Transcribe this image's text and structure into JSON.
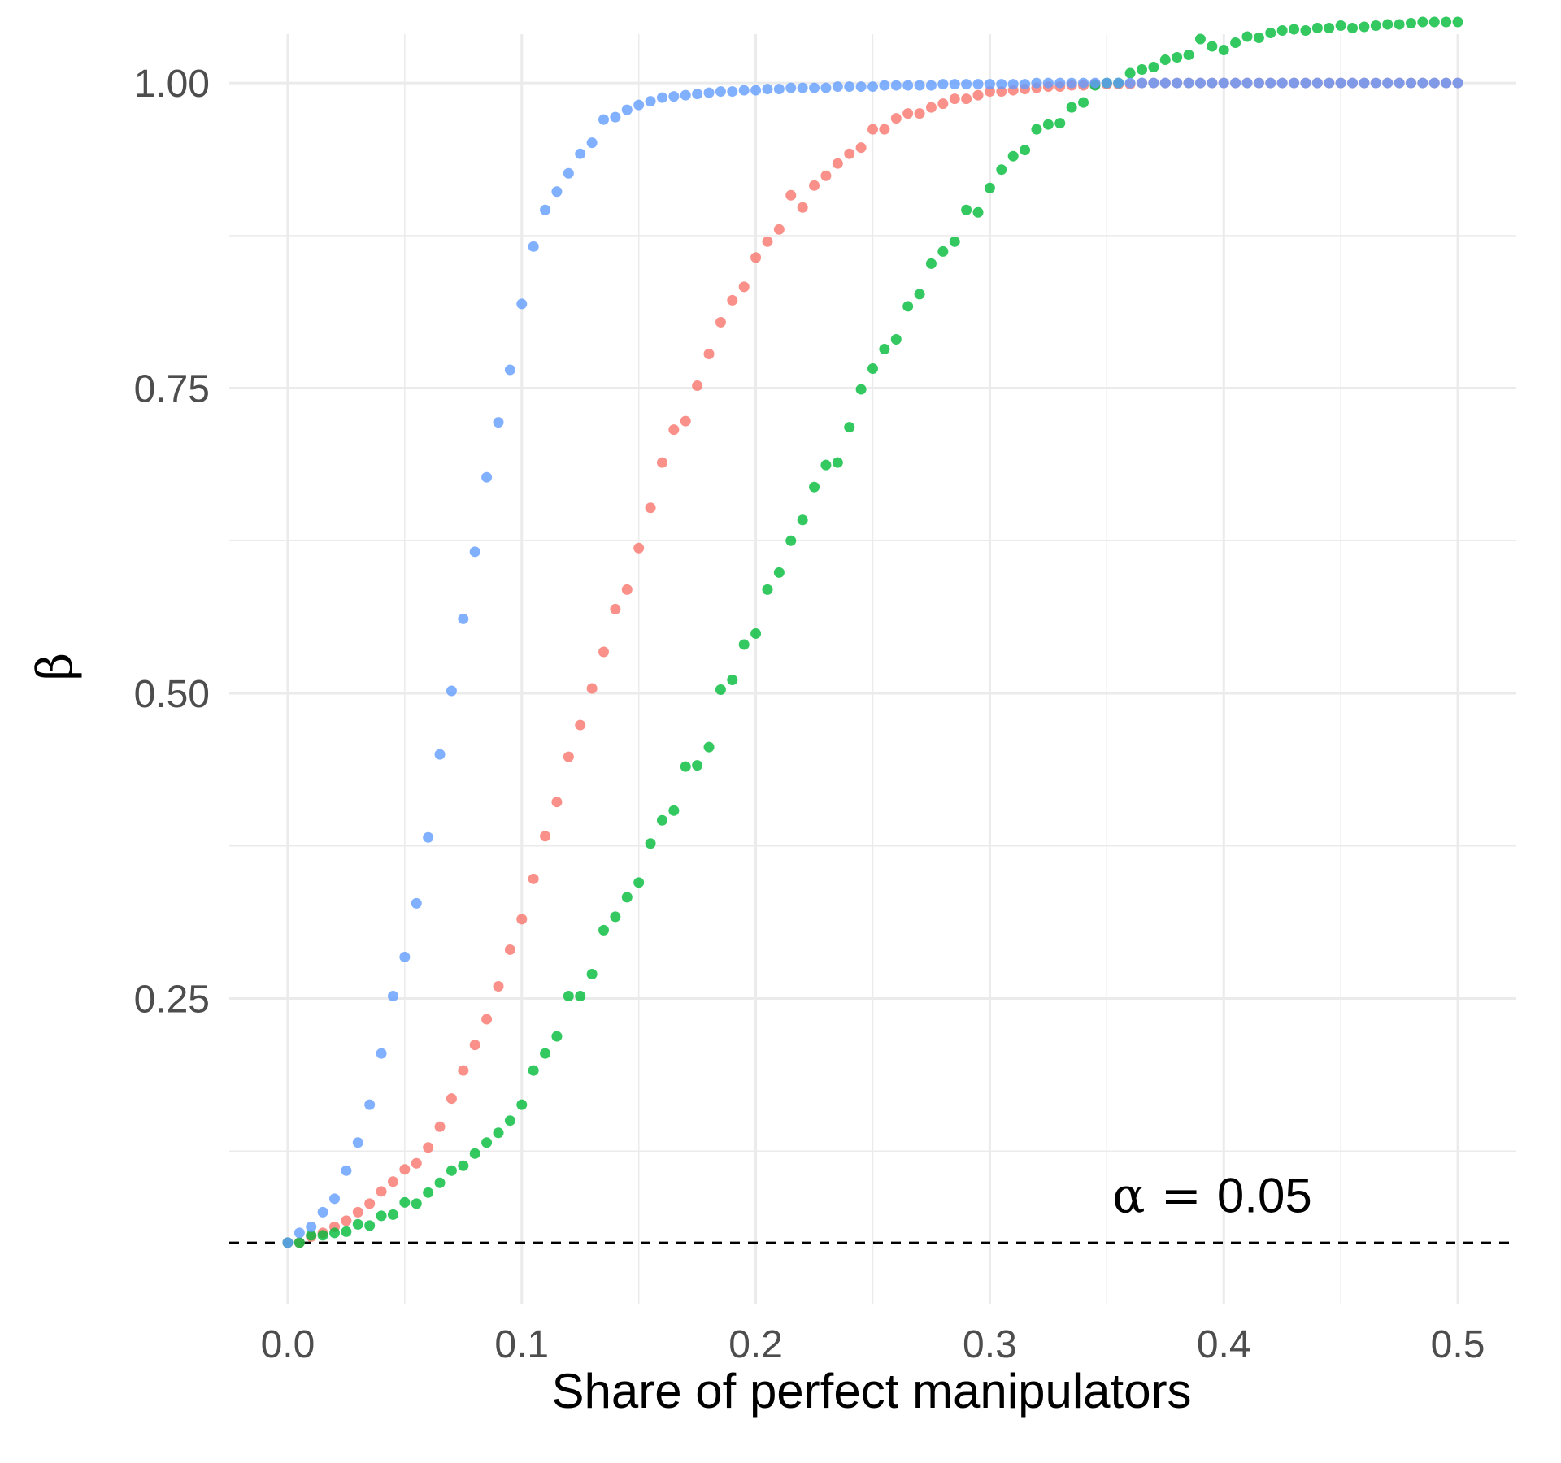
{
  "chart_data": {
    "type": "scatter",
    "title": "",
    "xlabel": "Share of perfect manipulators",
    "ylabel": "β",
    "xlim": [
      -0.025,
      0.525
    ],
    "ylim": [
      0.0,
      1.04
    ],
    "x_ticks": [
      0.0,
      0.1,
      0.2,
      0.3,
      0.4,
      0.5
    ],
    "x_tick_labels": [
      "0.0",
      "0.1",
      "0.2",
      "0.3",
      "0.4",
      "0.5"
    ],
    "y_ticks": [
      0.25,
      0.5,
      0.75,
      1.0
    ],
    "y_tick_labels": [
      "0.25",
      "0.50",
      "0.75",
      "1.00"
    ],
    "y_minor_ticks": [
      0.125,
      0.375,
      0.625,
      0.875
    ],
    "grid": true,
    "legend": "none",
    "reference_line": {
      "y": 0.05,
      "style": "dashed",
      "color": "#000000"
    },
    "annotation": {
      "greek": "α",
      "equals": " = ",
      "value": "0.05",
      "x": 0.395,
      "y": 0.075
    },
    "x": [
      0.0,
      0.005,
      0.01,
      0.015,
      0.02,
      0.025,
      0.03,
      0.035,
      0.04,
      0.045,
      0.05,
      0.055,
      0.06,
      0.065,
      0.07,
      0.075,
      0.08,
      0.085,
      0.09,
      0.095,
      0.1,
      0.105,
      0.11,
      0.115,
      0.12,
      0.125,
      0.13,
      0.135,
      0.14,
      0.145,
      0.15,
      0.155,
      0.16,
      0.165,
      0.17,
      0.175,
      0.18,
      0.185,
      0.19,
      0.195,
      0.2,
      0.205,
      0.21,
      0.215,
      0.22,
      0.225,
      0.23,
      0.235,
      0.24,
      0.245,
      0.25,
      0.255,
      0.26,
      0.265,
      0.27,
      0.275,
      0.28,
      0.285,
      0.29,
      0.295,
      0.3,
      0.305,
      0.31,
      0.315,
      0.32,
      0.325,
      0.33,
      0.335,
      0.34,
      0.345,
      0.35,
      0.355,
      0.36,
      0.365,
      0.37,
      0.375,
      0.38,
      0.385,
      0.39,
      0.395,
      0.4,
      0.405,
      0.41,
      0.415,
      0.42,
      0.425,
      0.43,
      0.435,
      0.44,
      0.445,
      0.45,
      0.455,
      0.46,
      0.465,
      0.47,
      0.475,
      0.48,
      0.485,
      0.49,
      0.495,
      0.5
    ],
    "series": [
      {
        "color": "#F8766D",
        "values": [
          0.05,
          0.05,
          0.055,
          0.058,
          0.063,
          0.068,
          0.075,
          0.082,
          0.092,
          0.1,
          0.11,
          0.115,
          0.128,
          0.145,
          0.168,
          0.191,
          0.212,
          0.233,
          0.26,
          0.29,
          0.315,
          0.348,
          0.383,
          0.411,
          0.448,
          0.474,
          0.504,
          0.534,
          0.569,
          0.585,
          0.619,
          0.652,
          0.689,
          0.716,
          0.723,
          0.752,
          0.778,
          0.804,
          0.822,
          0.833,
          0.857,
          0.87,
          0.88,
          0.908,
          0.898,
          0.916,
          0.924,
          0.934,
          0.942,
          0.947,
          0.962,
          0.962,
          0.971,
          0.975,
          0.975,
          0.98,
          0.983,
          0.987,
          0.987,
          0.99,
          0.993,
          0.993,
          0.994,
          0.995,
          0.996,
          0.997,
          0.997,
          0.998,
          0.998,
          0.999,
          0.999,
          0.999,
          0.999,
          1.0,
          1.0,
          1.0,
          1.0,
          1.0,
          1.0,
          1.0,
          1.0,
          1.0,
          1.0,
          1.0,
          1.0,
          1.0,
          1.0,
          1.0,
          1.0,
          1.0,
          1.0,
          1.0,
          1.0,
          1.0,
          1.0,
          1.0,
          1.0,
          1.0,
          1.0,
          1.0,
          1.0
        ]
      },
      {
        "color": "#00BA38",
        "values": [
          0.05,
          0.05,
          0.056,
          0.056,
          0.058,
          0.059,
          0.065,
          0.064,
          0.072,
          0.073,
          0.083,
          0.082,
          0.091,
          0.099,
          0.109,
          0.113,
          0.123,
          0.132,
          0.14,
          0.15,
          0.163,
          0.191,
          0.205,
          0.219,
          0.252,
          0.252,
          0.27,
          0.306,
          0.317,
          0.333,
          0.345,
          0.377,
          0.396,
          0.404,
          0.44,
          0.441,
          0.456,
          0.503,
          0.511,
          0.54,
          0.549,
          0.585,
          0.599,
          0.625,
          0.642,
          0.669,
          0.687,
          0.689,
          0.718,
          0.749,
          0.766,
          0.782,
          0.79,
          0.817,
          0.827,
          0.852,
          0.862,
          0.87,
          0.896,
          0.894,
          0.914,
          0.929,
          0.94,
          0.945,
          0.962,
          0.966,
          0.967,
          0.98,
          0.984,
          0.998,
          1.0,
          1.0,
          1.008,
          1.011,
          1.013,
          1.019,
          1.021,
          1.023,
          1.036,
          1.03,
          1.027,
          1.033,
          1.038,
          1.037,
          1.041,
          1.043,
          1.044,
          1.043,
          1.045,
          1.045,
          1.047,
          1.045,
          1.046,
          1.047,
          1.048,
          1.048,
          1.049,
          1.05,
          1.05,
          1.05,
          1.05
        ]
      },
      {
        "color": "#619CFF",
        "values": [
          0.05,
          0.058,
          0.063,
          0.075,
          0.086,
          0.109,
          0.132,
          0.163,
          0.205,
          0.252,
          0.284,
          0.328,
          0.382,
          0.45,
          0.502,
          0.561,
          0.616,
          0.677,
          0.722,
          0.765,
          0.819,
          0.866,
          0.896,
          0.911,
          0.926,
          0.942,
          0.951,
          0.97,
          0.972,
          0.978,
          0.982,
          0.985,
          0.988,
          0.989,
          0.99,
          0.991,
          0.992,
          0.993,
          0.993,
          0.994,
          0.994,
          0.995,
          0.995,
          0.996,
          0.996,
          0.996,
          0.996,
          0.997,
          0.997,
          0.997,
          0.997,
          0.998,
          0.998,
          0.998,
          0.998,
          0.998,
          0.999,
          0.999,
          0.999,
          0.999,
          0.999,
          0.999,
          0.999,
          0.999,
          1.0,
          1.0,
          1.0,
          1.0,
          1.0,
          1.0,
          1.0,
          1.0,
          1.0,
          1.0,
          1.0,
          1.0,
          1.0,
          1.0,
          1.0,
          1.0,
          1.0,
          1.0,
          1.0,
          1.0,
          1.0,
          1.0,
          1.0,
          1.0,
          1.0,
          1.0,
          1.0,
          1.0,
          1.0,
          1.0,
          1.0,
          1.0,
          1.0,
          1.0,
          1.0,
          1.0,
          1.0
        ]
      }
    ]
  }
}
